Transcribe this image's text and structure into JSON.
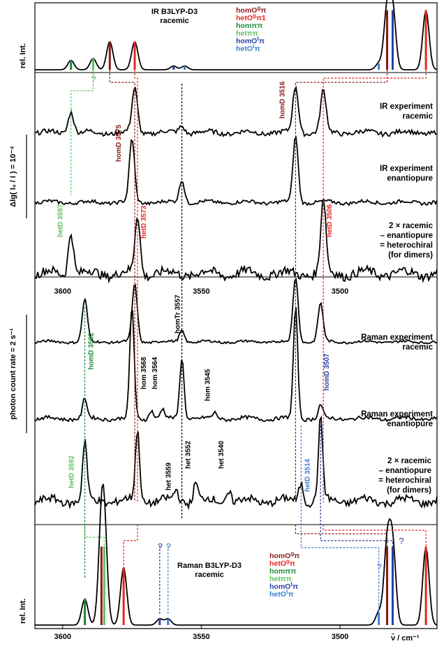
{
  "chart_data": {
    "type": "line",
    "x_unit_label": "ν̃ / cm⁻¹",
    "x_axis_reversed": true,
    "xlim": [
      3610,
      3465
    ],
    "x_ticks": [
      3600,
      3550,
      3500
    ],
    "colors": {
      "homOg": "#8b1a1a",
      "hetOg": "#e8251f",
      "hompipi": "#1f8a3a",
      "hetpipi": "#5fbf5f",
      "homOt": "#2b3f9e",
      "hetOt": "#3b7fd0",
      "black": "#000000"
    },
    "panels": [
      {
        "name": "IR B3LYP-D3 racemic",
        "title_line1": "IR B3LYP-D3",
        "title_line2": "racemic",
        "ylabel": "rel. Int.",
        "sticks": [
          {
            "x": 3597,
            "h": 0.15,
            "series": "hompipi"
          },
          {
            "x": 3589,
            "h": 0.18,
            "series": "hetpipi"
          },
          {
            "x": 3583,
            "h": 0.45,
            "series": "homOg"
          },
          {
            "x": 3574,
            "h": 0.45,
            "series": "hetOg"
          },
          {
            "x": 3560,
            "h": 0.06,
            "series": "homOt"
          },
          {
            "x": 3556,
            "h": 0.06,
            "series": "hetOt"
          },
          {
            "x": 3486,
            "h": 0.1,
            "series": "hetOt"
          },
          {
            "x": 3483,
            "h": 0.95,
            "series": "homOg"
          },
          {
            "x": 3481,
            "h": 0.95,
            "series": "homOt"
          },
          {
            "x": 3469,
            "h": 0.95,
            "series": "hetOg"
          }
        ]
      },
      {
        "name": "IR experiment racemic",
        "title_line1": "IR experiment",
        "title_line2": "racemic",
        "peaks": [
          {
            "x": 3597,
            "h": 0.45
          },
          {
            "x": 3574,
            "h": 0.9
          },
          {
            "x": 3557,
            "h": 0.15
          },
          {
            "x": 3516,
            "h": 0.95
          },
          {
            "x": 3506,
            "h": 0.85
          }
        ]
      },
      {
        "name": "IR experiment enantiopure",
        "title_line1": "IR experiment",
        "title_line2": "enantiopure",
        "peaks": [
          {
            "x": 3575,
            "h": 0.95
          },
          {
            "x": 3557,
            "h": 0.35
          },
          {
            "x": 3516,
            "h": 1.0
          }
        ]
      },
      {
        "name": "IR difference heterochiral",
        "title_line1": "2 × racemic",
        "title_line2": "– enantiopure",
        "title_line3": "= heterochiral",
        "title_line4": "(for dimers)",
        "peaks": [
          {
            "x": 3597,
            "h": 0.6
          },
          {
            "x": 3573,
            "h": 0.8
          },
          {
            "x": 3506,
            "h": 1.0
          }
        ]
      },
      {
        "name": "Raman experiment racemic",
        "title_line1": "Raman experiment",
        "title_line2": "racemic",
        "peaks": [
          {
            "x": 3592,
            "h": 0.55
          },
          {
            "x": 3574,
            "h": 0.75
          },
          {
            "x": 3557,
            "h": 0.15
          },
          {
            "x": 3516,
            "h": 0.85
          },
          {
            "x": 3507,
            "h": 0.5
          }
        ]
      },
      {
        "name": "Raman experiment enantiopure",
        "title_line1": "Raman experiment",
        "title_line2": "enantiopure",
        "peaks": [
          {
            "x": 3592,
            "h": 0.18
          },
          {
            "x": 3575,
            "h": 1.0
          },
          {
            "x": 3568,
            "h": 0.08
          },
          {
            "x": 3564,
            "h": 0.08
          },
          {
            "x": 3557,
            "h": 0.55
          },
          {
            "x": 3545,
            "h": 0.05
          },
          {
            "x": 3516,
            "h": 1.0
          },
          {
            "x": 3507,
            "h": 0.12
          }
        ]
      },
      {
        "name": "Raman difference heterochiral",
        "title_line1": "2 × racemic",
        "title_line2": "– enantiopure",
        "title_line3": "= heterochiral",
        "title_line4": "(for dimers)",
        "peaks": [
          {
            "x": 3592,
            "h": 0.55
          },
          {
            "x": 3573,
            "h": 0.65
          },
          {
            "x": 3559,
            "h": 0.1
          },
          {
            "x": 3552,
            "h": 0.18
          },
          {
            "x": 3540,
            "h": 0.1
          },
          {
            "x": 3514,
            "h": 0.18
          },
          {
            "x": 3507,
            "h": 0.75
          }
        ]
      },
      {
        "name": "Raman B3LYP-D3 racemic",
        "title_line1": "Raman B3LYP-D3",
        "title_line2": "racemic",
        "ylabel": "rel. Int.",
        "sticks": [
          {
            "x": 3592,
            "h": 0.25,
            "series": "hompipi"
          },
          {
            "x": 3586,
            "h": 0.75,
            "series": "homOg"
          },
          {
            "x": 3585,
            "h": 0.75,
            "series": "hetpipi"
          },
          {
            "x": 3578,
            "h": 0.55,
            "series": "hetOg"
          },
          {
            "x": 3565,
            "h": 0.06,
            "series": "homOt"
          },
          {
            "x": 3562,
            "h": 0.06,
            "series": "hetOt"
          },
          {
            "x": 3486,
            "h": 0.12,
            "series": "hetOt"
          },
          {
            "x": 3483,
            "h": 0.75,
            "series": "homOg"
          },
          {
            "x": 3481,
            "h": 0.75,
            "series": "homOt"
          },
          {
            "x": 3469,
            "h": 0.75,
            "series": "hetOg"
          }
        ]
      }
    ],
    "legend": [
      {
        "base": "homO",
        "sup": "g",
        "tail": "π",
        "key": "homOg"
      },
      {
        "base": "hetO",
        "sup": "g",
        "tail": "π1",
        "key": "hetOg"
      },
      {
        "base": "hom",
        "sup": "",
        "tail": "ππ",
        "key": "hompipi"
      },
      {
        "base": "het",
        "sup": "",
        "tail": "ππ",
        "key": "hetpipi"
      },
      {
        "base": "homO",
        "sup": "t",
        "tail": "π",
        "key": "homOt"
      },
      {
        "base": "hetO",
        "sup": "t",
        "tail": "π",
        "key": "hetOt"
      }
    ],
    "legend_bottom": [
      {
        "base": "homO",
        "sup": "g",
        "tail": "π",
        "key": "homOg"
      },
      {
        "base": "hetO",
        "sup": "g",
        "tail": "π",
        "key": "hetOg"
      },
      {
        "base": "hom",
        "sup": "",
        "tail": "ππ",
        "key": "hompipi"
      },
      {
        "base": "het",
        "sup": "",
        "tail": "ππ",
        "key": "hetpipi"
      },
      {
        "base": "homO",
        "sup": "t",
        "tail": "π",
        "key": "homOt"
      },
      {
        "base": "hetO",
        "sup": "t",
        "tail": "π",
        "key": "hetOt"
      }
    ],
    "ir_scale_label": "Δlg( I₀ / I ) = 10⁻⁴",
    "raman_scale_label": "photon count rate = 2 s⁻¹",
    "raman_inner_ticks": [
      3600,
      3550,
      3500
    ],
    "question_marks": [
      "?",
      "?",
      "?",
      "?",
      "?"
    ],
    "annotations": [
      {
        "text": "homD 3575",
        "key": "homOg"
      },
      {
        "text": "homD 3516",
        "key": "homOg"
      },
      {
        "text": "hetD 3597",
        "key": "hetpipi"
      },
      {
        "text": "hetD 3573",
        "key": "hetOg"
      },
      {
        "text": "hetD 3506",
        "key": "hetOg"
      },
      {
        "text": "homD 3592",
        "key": "hompipi"
      },
      {
        "text": "homD 3507",
        "key": "homOt"
      },
      {
        "text": "hetD 3592",
        "key": "hetpipi"
      },
      {
        "text": "hetD 3514",
        "key": "hetOt"
      },
      {
        "text": "homTr 3557",
        "key": "black"
      },
      {
        "text": "hom 3568",
        "key": "black"
      },
      {
        "text": "hom 3564",
        "key": "black"
      },
      {
        "text": "hom 3545",
        "key": "black"
      },
      {
        "text": "het 3559",
        "key": "black"
      },
      {
        "text": "het 3552",
        "key": "black"
      },
      {
        "text": "het 3540",
        "key": "black"
      }
    ]
  }
}
